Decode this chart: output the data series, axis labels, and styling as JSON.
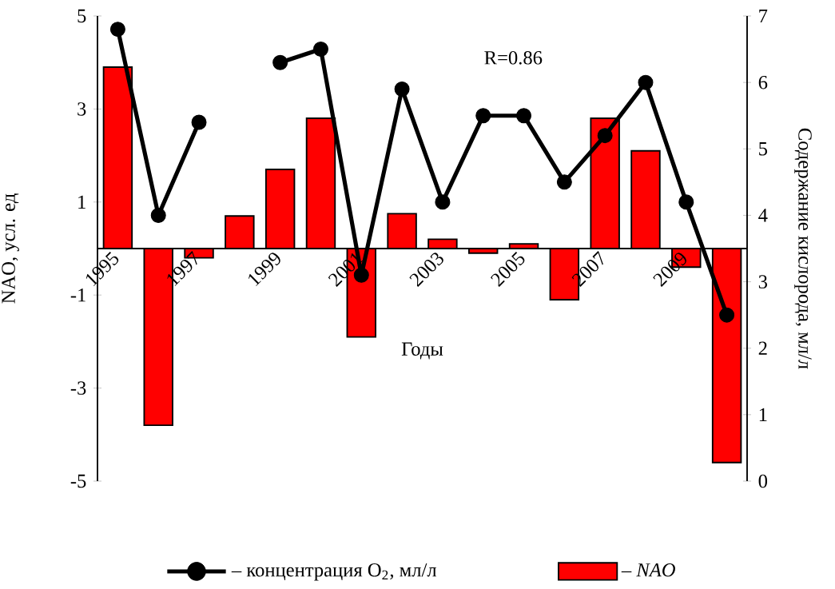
{
  "chart_data": {
    "type": "bar",
    "categories": [
      "1995",
      null,
      "1997",
      null,
      "1999",
      null,
      "2001",
      null,
      "2003",
      null,
      "2005",
      null,
      "2007",
      null,
      "2009",
      null
    ],
    "series": [
      {
        "name": "– концентрация O$_{2}$, мл/л",
        "type": "line",
        "axis": "y2",
        "color": "#000000",
        "marker": "circle",
        "values": [
          6.8,
          4.0,
          5.4,
          null,
          6.3,
          6.5,
          3.1,
          5.9,
          4.2,
          5.5,
          5.5,
          4.5,
          5.2,
          6.0,
          4.2,
          2.5
        ]
      },
      {
        "name": "– *NAO*",
        "color": "#ff0000",
        "values": [
          3.9,
          -3.8,
          -0.2,
          0.7,
          1.7,
          2.8,
          -1.9,
          0.75,
          0.2,
          -0.1,
          0.1,
          -1.1,
          2.8,
          2.1,
          -0.4,
          -4.6
        ]
      }
    ],
    "xlabel": "Годы",
    "ylabel": "NAO, усл. ед",
    "y2label": "Содержание кислорода, мл/л",
    "ylim": [
      -5,
      5
    ],
    "yticks": [
      -5,
      -3,
      -1,
      1,
      3,
      5
    ],
    "y2lim": [
      0,
      7
    ],
    "y2ticks": [
      0,
      1,
      2,
      3,
      4,
      5,
      6,
      7
    ],
    "annotations": [
      "R=0.86"
    ],
    "legend": "bottom"
  }
}
